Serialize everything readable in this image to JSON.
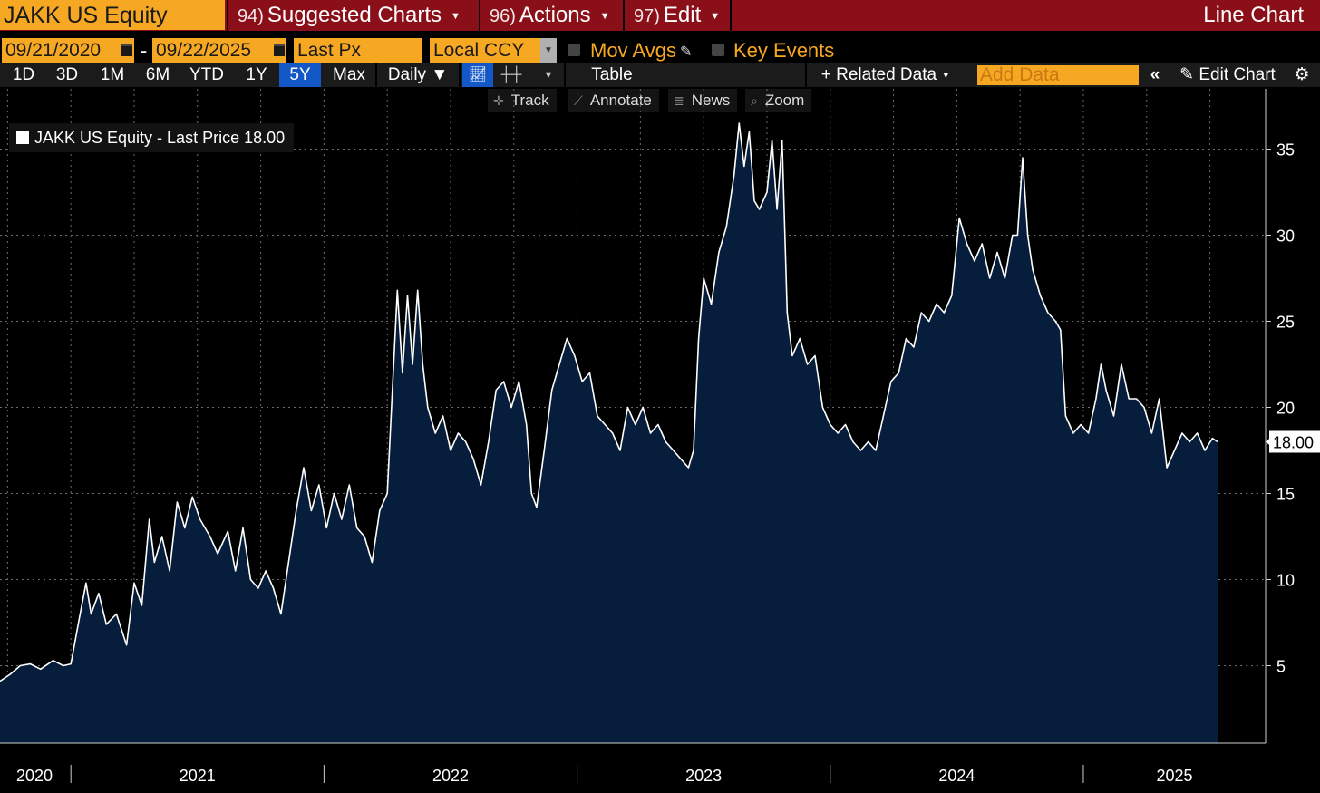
{
  "header": {
    "ticker": "JAKK US Equity",
    "menus": [
      {
        "num": "94)",
        "label": "Suggested Charts"
      },
      {
        "num": "96)",
        "label": "Actions"
      },
      {
        "num": "97)",
        "label": "Edit"
      }
    ],
    "chart_type": "Line Chart"
  },
  "controls": {
    "start_date": "09/21/2020",
    "date_sep": "-",
    "end_date": "09/22/2025",
    "field": "Last Px",
    "currency": "Local CCY",
    "mov_avgs": "Mov Avgs",
    "key_events": "Key Events"
  },
  "toolbar": {
    "periods": [
      "1D",
      "3D",
      "1M",
      "6M",
      "YTD",
      "1Y",
      "5Y",
      "Max"
    ],
    "selected_period": "5Y",
    "frequency": "Daily",
    "table": "Table",
    "related_data": "Related Data",
    "add_data_placeholder": "Add Data",
    "edit_chart": "Edit Chart"
  },
  "subtools": [
    "Track",
    "Annotate",
    "News",
    "Zoom"
  ],
  "legend": {
    "label": "JAKK US Equity - Last Price",
    "value": "18.00"
  },
  "colors": {
    "accent": "#f7a823",
    "header_red": "#8a0f19",
    "area_fill": "#061d3c",
    "line": "#ffffff",
    "selected": "#1458c8"
  },
  "chart_data": {
    "type": "area",
    "title": "JAKK US Equity - Last Price",
    "series_name": "Last Price",
    "last_value": 18.0,
    "last_value_label": "18.00",
    "x_labels": [
      "2020",
      "2021",
      "2022",
      "2023",
      "2024",
      "2025"
    ],
    "y_ticks": [
      5,
      10,
      15,
      20,
      25,
      30,
      35
    ],
    "ylim": [
      0.5,
      38.5
    ],
    "xlim": [
      2020.72,
      2025.72
    ],
    "grid": true,
    "points": [
      [
        2020.72,
        4.1
      ],
      [
        2020.76,
        4.5
      ],
      [
        2020.8,
        5.0
      ],
      [
        2020.84,
        5.1
      ],
      [
        2020.88,
        4.8
      ],
      [
        2020.93,
        5.3
      ],
      [
        2020.97,
        5.0
      ],
      [
        2021.0,
        5.1
      ],
      [
        2021.03,
        7.5
      ],
      [
        2021.06,
        9.8
      ],
      [
        2021.08,
        8.0
      ],
      [
        2021.11,
        9.2
      ],
      [
        2021.14,
        7.4
      ],
      [
        2021.18,
        8.0
      ],
      [
        2021.22,
        6.2
      ],
      [
        2021.25,
        9.8
      ],
      [
        2021.28,
        8.5
      ],
      [
        2021.31,
        13.5
      ],
      [
        2021.33,
        11.0
      ],
      [
        2021.36,
        12.5
      ],
      [
        2021.39,
        10.5
      ],
      [
        2021.42,
        14.5
      ],
      [
        2021.45,
        13.0
      ],
      [
        2021.48,
        14.8
      ],
      [
        2021.51,
        13.5
      ],
      [
        2021.55,
        12.5
      ],
      [
        2021.58,
        11.5
      ],
      [
        2021.62,
        12.8
      ],
      [
        2021.65,
        10.5
      ],
      [
        2021.68,
        13.0
      ],
      [
        2021.71,
        10.0
      ],
      [
        2021.74,
        9.5
      ],
      [
        2021.77,
        10.5
      ],
      [
        2021.8,
        9.5
      ],
      [
        2021.83,
        8.0
      ],
      [
        2021.86,
        11.0
      ],
      [
        2021.89,
        14.0
      ],
      [
        2021.92,
        16.5
      ],
      [
        2021.95,
        14.0
      ],
      [
        2021.98,
        15.5
      ],
      [
        2022.01,
        13.0
      ],
      [
        2022.04,
        15.0
      ],
      [
        2022.07,
        13.5
      ],
      [
        2022.1,
        15.5
      ],
      [
        2022.13,
        13.0
      ],
      [
        2022.16,
        12.5
      ],
      [
        2022.19,
        11.0
      ],
      [
        2022.22,
        14.0
      ],
      [
        2022.25,
        15.0
      ],
      [
        2022.27,
        21.0
      ],
      [
        2022.29,
        26.8
      ],
      [
        2022.31,
        22.0
      ],
      [
        2022.33,
        26.5
      ],
      [
        2022.35,
        22.5
      ],
      [
        2022.37,
        26.8
      ],
      [
        2022.39,
        22.5
      ],
      [
        2022.41,
        20.0
      ],
      [
        2022.44,
        18.5
      ],
      [
        2022.47,
        19.5
      ],
      [
        2022.5,
        17.5
      ],
      [
        2022.53,
        18.5
      ],
      [
        2022.56,
        18.0
      ],
      [
        2022.59,
        17.0
      ],
      [
        2022.62,
        15.5
      ],
      [
        2022.65,
        18.0
      ],
      [
        2022.68,
        21.0
      ],
      [
        2022.71,
        21.5
      ],
      [
        2022.74,
        20.0
      ],
      [
        2022.77,
        21.5
      ],
      [
        2022.8,
        19.0
      ],
      [
        2022.82,
        15.0
      ],
      [
        2022.84,
        14.2
      ],
      [
        2022.87,
        17.5
      ],
      [
        2022.9,
        21.0
      ],
      [
        2022.93,
        22.5
      ],
      [
        2022.96,
        24.0
      ],
      [
        2022.99,
        23.0
      ],
      [
        2023.02,
        21.5
      ],
      [
        2023.05,
        22.0
      ],
      [
        2023.08,
        19.5
      ],
      [
        2023.11,
        19.0
      ],
      [
        2023.14,
        18.5
      ],
      [
        2023.17,
        17.5
      ],
      [
        2023.2,
        20.0
      ],
      [
        2023.23,
        19.0
      ],
      [
        2023.26,
        20.0
      ],
      [
        2023.29,
        18.5
      ],
      [
        2023.32,
        19.0
      ],
      [
        2023.35,
        18.0
      ],
      [
        2023.38,
        17.5
      ],
      [
        2023.41,
        17.0
      ],
      [
        2023.44,
        16.5
      ],
      [
        2023.46,
        17.5
      ],
      [
        2023.48,
        24.0
      ],
      [
        2023.5,
        27.5
      ],
      [
        2023.53,
        26.0
      ],
      [
        2023.56,
        29.0
      ],
      [
        2023.59,
        30.5
      ],
      [
        2023.62,
        33.5
      ],
      [
        2023.64,
        36.5
      ],
      [
        2023.66,
        34.0
      ],
      [
        2023.68,
        36.0
      ],
      [
        2023.7,
        32.0
      ],
      [
        2023.72,
        31.5
      ],
      [
        2023.75,
        32.5
      ],
      [
        2023.77,
        35.5
      ],
      [
        2023.79,
        31.5
      ],
      [
        2023.81,
        35.5
      ],
      [
        2023.83,
        25.5
      ],
      [
        2023.85,
        23.0
      ],
      [
        2023.88,
        24.0
      ],
      [
        2023.91,
        22.5
      ],
      [
        2023.94,
        23.0
      ],
      [
        2023.97,
        20.0
      ],
      [
        2024.0,
        19.0
      ],
      [
        2024.03,
        18.5
      ],
      [
        2024.06,
        19.0
      ],
      [
        2024.09,
        18.0
      ],
      [
        2024.12,
        17.5
      ],
      [
        2024.15,
        18.0
      ],
      [
        2024.18,
        17.5
      ],
      [
        2024.21,
        19.5
      ],
      [
        2024.24,
        21.5
      ],
      [
        2024.27,
        22.0
      ],
      [
        2024.3,
        24.0
      ],
      [
        2024.33,
        23.5
      ],
      [
        2024.36,
        25.5
      ],
      [
        2024.39,
        25.0
      ],
      [
        2024.42,
        26.0
      ],
      [
        2024.45,
        25.5
      ],
      [
        2024.48,
        26.5
      ],
      [
        2024.51,
        31.0
      ],
      [
        2024.54,
        29.5
      ],
      [
        2024.57,
        28.5
      ],
      [
        2024.6,
        29.5
      ],
      [
        2024.63,
        27.5
      ],
      [
        2024.66,
        29.0
      ],
      [
        2024.69,
        27.5
      ],
      [
        2024.72,
        30.0
      ],
      [
        2024.74,
        30.0
      ],
      [
        2024.76,
        34.5
      ],
      [
        2024.78,
        30.0
      ],
      [
        2024.8,
        28.0
      ],
      [
        2024.83,
        26.5
      ],
      [
        2024.86,
        25.5
      ],
      [
        2024.89,
        25.0
      ],
      [
        2024.91,
        24.5
      ],
      [
        2024.93,
        19.5
      ],
      [
        2024.96,
        18.5
      ],
      [
        2024.99,
        19.0
      ],
      [
        2025.02,
        18.5
      ],
      [
        2025.05,
        20.5
      ],
      [
        2025.07,
        22.5
      ],
      [
        2025.09,
        21.0
      ],
      [
        2025.12,
        19.5
      ],
      [
        2025.15,
        22.5
      ],
      [
        2025.18,
        20.5
      ],
      [
        2025.21,
        20.5
      ],
      [
        2025.24,
        20.0
      ],
      [
        2025.27,
        18.5
      ],
      [
        2025.3,
        20.5
      ],
      [
        2025.33,
        16.5
      ],
      [
        2025.36,
        17.5
      ],
      [
        2025.39,
        18.5
      ],
      [
        2025.42,
        18.0
      ],
      [
        2025.45,
        18.5
      ],
      [
        2025.48,
        17.5
      ],
      [
        2025.51,
        18.2
      ],
      [
        2025.53,
        18.0
      ]
    ]
  }
}
